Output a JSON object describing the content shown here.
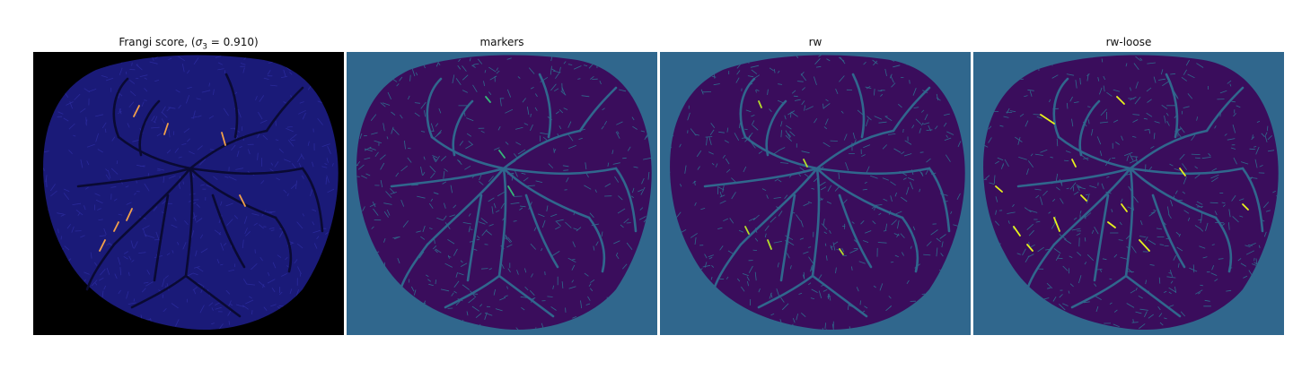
{
  "panels": [
    {
      "title_prefix": "Frangi score, (",
      "sigma": "σ",
      "sigma_sub": "3",
      "title_suffix": " = 0.910)",
      "background": "#000000",
      "tissue": "#1a1a78",
      "vessel": "#0a0a33",
      "highlight": "#f2a04a"
    },
    {
      "title": "markers",
      "background": "#30678d",
      "tissue": "#3a0d5c",
      "vessel": "#30678d",
      "highlight": "#35b779"
    },
    {
      "title": "rw",
      "background": "#30678d",
      "tissue": "#3a0d5c",
      "vessel": "#30678d",
      "highlight": "#b5de2b"
    },
    {
      "title": "rw-loose",
      "background": "#30678d",
      "tissue": "#3a0d5c",
      "vessel": "#30678d",
      "highlight": "#e7f21c"
    }
  ]
}
